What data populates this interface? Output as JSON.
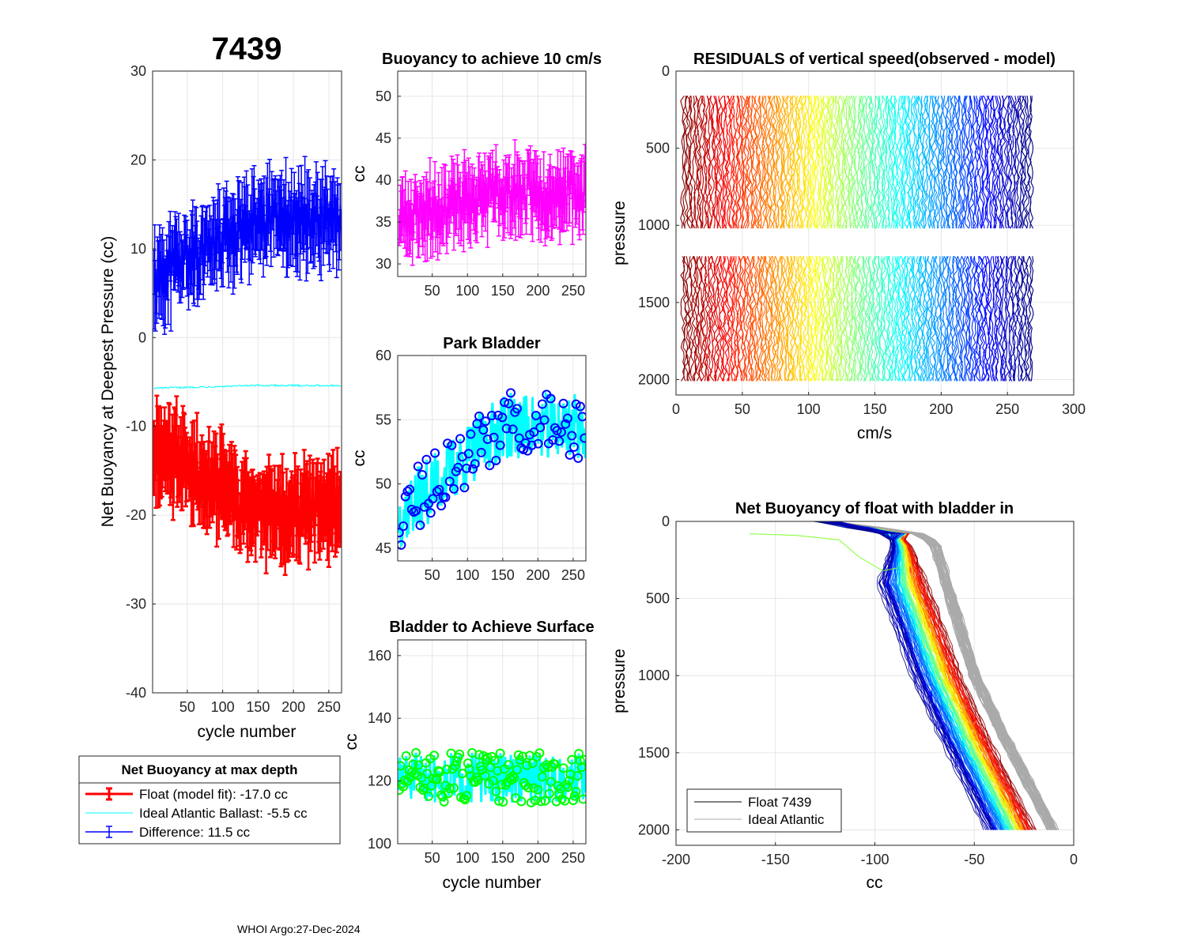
{
  "figure": {
    "float_id": "7439",
    "footer": "WHOI Argo:27-Dec-2024"
  },
  "legend_main": {
    "title": "Net Buoyancy at max depth",
    "entries": [
      {
        "label": "Float (model fit): -17.0 cc",
        "color": "#ff0000"
      },
      {
        "label": "Ideal Atlantic Ballast:  -5.5 cc",
        "color": "#00ffff"
      },
      {
        "label": "Difference:  11.5 cc",
        "color": "#0000ff"
      }
    ]
  },
  "legend_profiles": {
    "entries": [
      {
        "label": "Float 7439",
        "color": "#000000"
      },
      {
        "label": "Ideal Atlantic",
        "color": "#aaaaaa"
      }
    ]
  },
  "chart_data": [
    {
      "id": "net-buoyancy",
      "type": "line",
      "title": "7439",
      "xlabel": "cycle number",
      "ylabel": "Net Buoyancy at Deepest Pressure (cc)",
      "xlim": [
        1,
        268
      ],
      "ylim": [
        -40,
        30
      ],
      "xticks": [
        50,
        100,
        150,
        200,
        250
      ],
      "yticks": [
        -40,
        -30,
        -20,
        -10,
        0,
        10,
        20,
        30
      ],
      "grid": true,
      "series": [
        {
          "name": "Float (model fit)",
          "color": "#ff0000",
          "error_bars": true,
          "start": -12,
          "end": -19.5,
          "noise": 3.0,
          "err": 3.0
        },
        {
          "name": "Ideal Atlantic Ballast",
          "color": "#00ffff",
          "error_bars": false,
          "start": -5.7,
          "end": -5.4,
          "noise": 0.1,
          "err": 0
        },
        {
          "name": "Difference",
          "color": "#0000ff",
          "error_bars": true,
          "start": 6.5,
          "end": 13.5,
          "noise": 3.0,
          "err": 3.0
        }
      ]
    },
    {
      "id": "buoyancy-10cms",
      "type": "line",
      "title": "Buoyancy to achieve 10 cm/s",
      "xlabel": "",
      "ylabel": "cc",
      "xlim": [
        1,
        268
      ],
      "ylim": [
        28.5,
        53
      ],
      "xticks": [
        50,
        100,
        150,
        200,
        250
      ],
      "yticks": [
        30,
        35,
        40,
        45,
        50
      ],
      "grid": true,
      "series": [
        {
          "name": "Buoyancy",
          "color": "#ff00ff",
          "error_bars": true,
          "start": 35.5,
          "end": 38.5,
          "noise": 3.0,
          "err": 2.5
        }
      ]
    },
    {
      "id": "park-bladder",
      "type": "line",
      "title": "Park Bladder",
      "xlabel": "",
      "ylabel": "cc",
      "xlim": [
        1,
        268
      ],
      "ylim": [
        44,
        60
      ],
      "xticks": [
        50,
        100,
        150,
        200,
        250
      ],
      "yticks": [
        45,
        50,
        55,
        60
      ],
      "grid": true,
      "series": [
        {
          "name": "Park Bladder",
          "color": "#00ffff",
          "marker_color": "#0000ff",
          "start": 47.5,
          "end": 54.5,
          "noise": 2.6,
          "marker_every": 3
        }
      ]
    },
    {
      "id": "bladder-surface",
      "type": "line",
      "title": "Bladder to Achieve Surface",
      "xlabel": "cycle number",
      "ylabel": "cc",
      "xlim": [
        1,
        268
      ],
      "ylim": [
        100,
        165
      ],
      "xticks": [
        50,
        100,
        150,
        200,
        250
      ],
      "yticks": [
        100,
        120,
        140,
        160
      ],
      "grid": true,
      "series": [
        {
          "name": "Bladder to Achieve Surface",
          "color": "#00ffff",
          "marker_color": "#00ff00",
          "start": 121,
          "end": 121,
          "noise": 8,
          "marker_every": 2
        }
      ]
    },
    {
      "id": "residuals",
      "type": "line",
      "title": "RESIDUALS of vertical speed(observed - model)",
      "xlabel": "cm/s",
      "ylabel": "pressure",
      "xlim": [
        0,
        300
      ],
      "ylim": [
        0,
        2100
      ],
      "y_reversed": true,
      "xticks": [
        0,
        50,
        100,
        150,
        200,
        250,
        300
      ],
      "yticks": [
        0,
        500,
        1000,
        1500,
        2000
      ],
      "grid": true,
      "offset_range": [
        5,
        268
      ],
      "segments": [
        [
          160,
          1020
        ],
        [
          1200,
          2010
        ]
      ],
      "colormap": "jet"
    },
    {
      "id": "net-buoyancy-bladder-in",
      "type": "line",
      "title": "Net Buoyancy of float with bladder in",
      "xlabel": "cc",
      "ylabel": "pressure",
      "xlim": [
        -200,
        0
      ],
      "ylim": [
        0,
        2100
      ],
      "y_reversed": true,
      "xticks": [
        -200,
        -150,
        -100,
        -50,
        0
      ],
      "yticks": [
        0,
        500,
        1000,
        1500,
        2000
      ],
      "grid": true,
      "ideal_profile": {
        "color": "#aaaaaa",
        "points": [
          [
            -125,
            0
          ],
          [
            -80,
            70
          ],
          [
            -70,
            140
          ],
          [
            -62,
            500
          ],
          [
            -50,
            1000
          ],
          [
            -35,
            1400
          ],
          [
            -10,
            2020
          ]
        ]
      },
      "float_profile": {
        "points": [
          [
            -125,
            0
          ],
          [
            -88,
            80
          ],
          [
            -82,
            170
          ],
          [
            -72,
            500
          ],
          [
            -58,
            1000
          ],
          [
            -44,
            1400
          ],
          [
            -20,
            2020
          ]
        ]
      }
    }
  ]
}
